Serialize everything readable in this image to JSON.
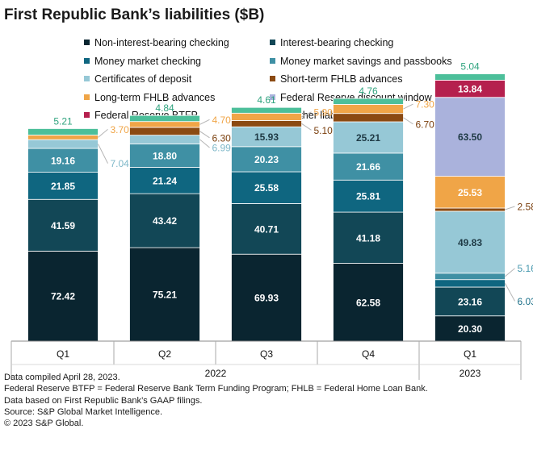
{
  "title": "First Republic Bank’s liabilities ($B)",
  "chart_data": {
    "type": "bar",
    "stacked": true,
    "title": "First Republic Bank’s liabilities ($B)",
    "unit": "$B",
    "categories": [
      "Q1",
      "Q2",
      "Q3",
      "Q4",
      "Q1"
    ],
    "groups": [
      {
        "label": "2022",
        "categories": [
          "Q1",
          "Q2",
          "Q3",
          "Q4"
        ]
      },
      {
        "label": "2023",
        "categories": [
          "Q1"
        ]
      }
    ],
    "series": [
      {
        "name": "Non-interest-bearing checking",
        "color": "#0a2530",
        "values": [
          72.42,
          75.21,
          69.93,
          62.58,
          20.3
        ]
      },
      {
        "name": "Interest-bearing checking",
        "color": "#124756",
        "values": [
          41.59,
          43.42,
          40.71,
          41.18,
          23.16
        ]
      },
      {
        "name": "Money market checking",
        "color": "#0f6680",
        "values": [
          21.85,
          21.24,
          25.58,
          25.81,
          6.03
        ]
      },
      {
        "name": "Money market savings and passbooks",
        "color": "#3f90a4",
        "values": [
          19.16,
          18.8,
          20.23,
          21.66,
          5.16
        ]
      },
      {
        "name": "Certificates of deposit",
        "color": "#96c8d6",
        "values": [
          7.04,
          6.99,
          15.93,
          25.21,
          49.83
        ]
      },
      {
        "name": "Short-term FHLB advances",
        "color": "#8b4a12",
        "values": [
          0,
          6.3,
          5.1,
          6.7,
          2.58
        ]
      },
      {
        "name": "Long-term FHLB advances",
        "color": "#f0a547",
        "values": [
          3.7,
          4.7,
          5.9,
          7.3,
          25.53
        ]
      },
      {
        "name": "Federal Reserve discount window",
        "color": "#aab2dc",
        "values": [
          0,
          0,
          0,
          0,
          63.5
        ]
      },
      {
        "name": "Federal Reserve BTFP",
        "color": "#b5204e",
        "values": [
          0,
          0,
          0,
          0,
          13.84
        ]
      },
      {
        "name": "All other liabilities",
        "color": "#4cbf9a",
        "values": [
          5.21,
          4.84,
          4.61,
          4.76,
          5.04
        ]
      }
    ],
    "labels": [
      {
        "bar": 0,
        "series": 0,
        "text": "72.42",
        "pos": "in"
      },
      {
        "bar": 0,
        "series": 1,
        "text": "41.59",
        "pos": "in"
      },
      {
        "bar": 0,
        "series": 2,
        "text": "21.85",
        "pos": "in"
      },
      {
        "bar": 0,
        "series": 3,
        "text": "19.16",
        "pos": "in"
      },
      {
        "bar": 0,
        "series": 4,
        "text": "7.04",
        "pos": "right"
      },
      {
        "bar": 0,
        "series": 6,
        "text": "3.70",
        "pos": "right"
      },
      {
        "bar": 0,
        "series": 9,
        "text": "5.21",
        "pos": "above"
      },
      {
        "bar": 1,
        "series": 0,
        "text": "75.21",
        "pos": "in"
      },
      {
        "bar": 1,
        "series": 1,
        "text": "43.42",
        "pos": "in"
      },
      {
        "bar": 1,
        "series": 2,
        "text": "21.24",
        "pos": "in"
      },
      {
        "bar": 1,
        "series": 3,
        "text": "18.80",
        "pos": "in"
      },
      {
        "bar": 1,
        "series": 4,
        "text": "6.99",
        "pos": "right"
      },
      {
        "bar": 1,
        "series": 5,
        "text": "6.30",
        "pos": "right"
      },
      {
        "bar": 1,
        "series": 6,
        "text": "4.70",
        "pos": "right"
      },
      {
        "bar": 1,
        "series": 9,
        "text": "4.84",
        "pos": "above"
      },
      {
        "bar": 2,
        "series": 0,
        "text": "69.93",
        "pos": "in"
      },
      {
        "bar": 2,
        "series": 1,
        "text": "40.71",
        "pos": "in"
      },
      {
        "bar": 2,
        "series": 2,
        "text": "25.58",
        "pos": "in"
      },
      {
        "bar": 2,
        "series": 3,
        "text": "20.23",
        "pos": "in"
      },
      {
        "bar": 2,
        "series": 4,
        "text": "15.93",
        "pos": "in"
      },
      {
        "bar": 2,
        "series": 5,
        "text": "5.10",
        "pos": "right"
      },
      {
        "bar": 2,
        "series": 6,
        "text": "5.90",
        "pos": "right"
      },
      {
        "bar": 2,
        "series": 9,
        "text": "4.61",
        "pos": "above"
      },
      {
        "bar": 3,
        "series": 0,
        "text": "62.58",
        "pos": "in"
      },
      {
        "bar": 3,
        "series": 1,
        "text": "41.18",
        "pos": "in"
      },
      {
        "bar": 3,
        "series": 2,
        "text": "25.81",
        "pos": "in"
      },
      {
        "bar": 3,
        "series": 3,
        "text": "21.66",
        "pos": "in"
      },
      {
        "bar": 3,
        "series": 4,
        "text": "25.21",
        "pos": "in"
      },
      {
        "bar": 3,
        "series": 5,
        "text": "6.70",
        "pos": "right"
      },
      {
        "bar": 3,
        "series": 6,
        "text": "7.30",
        "pos": "right"
      },
      {
        "bar": 3,
        "series": 9,
        "text": "4.76",
        "pos": "above"
      },
      {
        "bar": 4,
        "series": 0,
        "text": "20.30",
        "pos": "in"
      },
      {
        "bar": 4,
        "series": 1,
        "text": "23.16",
        "pos": "in"
      },
      {
        "bar": 4,
        "series": 2,
        "text": "6.03",
        "pos": "right"
      },
      {
        "bar": 4,
        "series": 3,
        "text": "5.16",
        "pos": "right"
      },
      {
        "bar": 4,
        "series": 4,
        "text": "49.83",
        "pos": "in"
      },
      {
        "bar": 4,
        "series": 5,
        "text": "2.58",
        "pos": "right"
      },
      {
        "bar": 4,
        "series": 6,
        "text": "25.53",
        "pos": "in"
      },
      {
        "bar": 4,
        "series": 7,
        "text": "63.50",
        "pos": "in"
      },
      {
        "bar": 4,
        "series": 8,
        "text": "13.84",
        "pos": "in"
      },
      {
        "bar": 4,
        "series": 9,
        "text": "5.04",
        "pos": "above"
      }
    ]
  },
  "notes": [
    "Data compiled April 28, 2023.",
    "Federal Reserve BTFP = Federal Reserve Bank Term Funding Program; FHLB = Federal Home Loan Bank.",
    "Data based on First Republic Bank’s GAAP filings.",
    "Source: S&P Global Market Intelligence.",
    "© 2023 S&P Global."
  ]
}
